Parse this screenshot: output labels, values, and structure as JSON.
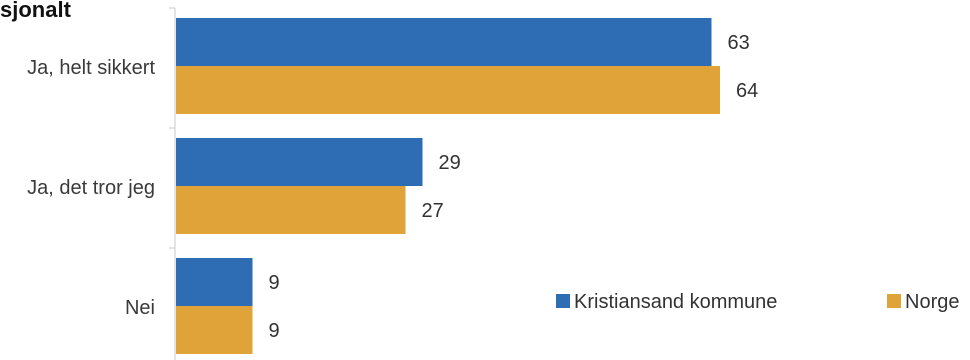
{
  "chart_data": {
    "type": "bar",
    "orientation": "horizontal",
    "title": "sjonalt",
    "categories": [
      "Ja, helt sikkert",
      "Ja, det tror jeg",
      "Nei"
    ],
    "series": [
      {
        "name": "Kristiansand kommune",
        "color": "#2e6db4",
        "values": [
          63,
          29,
          9
        ]
      },
      {
        "name": "Norge",
        "color": "#e0a33a",
        "values": [
          64,
          27,
          9
        ]
      }
    ],
    "xlim": [
      0,
      100
    ],
    "grid": false,
    "legend_position": "bottom-right",
    "data_labels": true
  }
}
